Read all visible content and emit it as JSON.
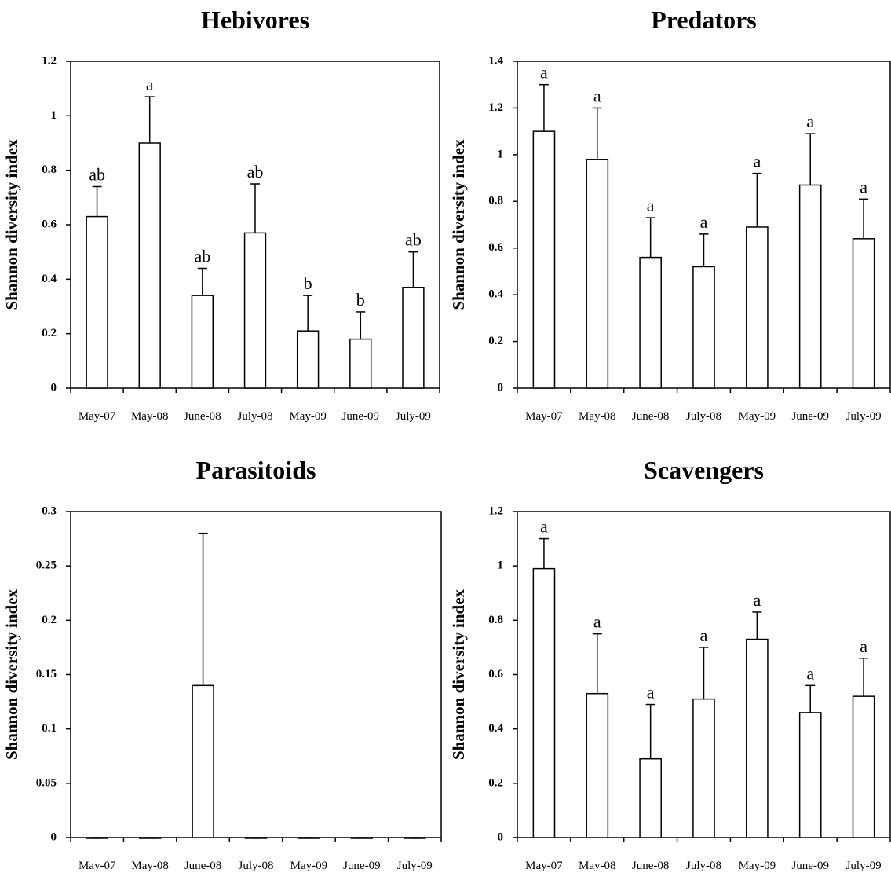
{
  "chart_data": [
    {
      "type": "bar",
      "title": "Hebivores",
      "y_label": "Shannon diversity index",
      "categories": [
        "May-07",
        "May-08",
        "June-08",
        "July-08",
        "May-09",
        "June-09",
        "July-09"
      ],
      "values": [
        0.63,
        0.9,
        0.34,
        0.57,
        0.21,
        0.18,
        0.37
      ],
      "errors": [
        0.11,
        0.17,
        0.1,
        0.18,
        0.13,
        0.1,
        0.13
      ],
      "annotations": [
        "ab",
        "a",
        "ab",
        "ab",
        "b",
        "b",
        "ab"
      ],
      "ylim": [
        0,
        1.2
      ],
      "yticks": [
        0,
        0.2,
        0.4,
        0.6,
        0.8,
        1,
        1.2
      ],
      "color": "#ffffff"
    },
    {
      "type": "bar",
      "title": "Predators",
      "y_label": "Shannon diversity index",
      "categories": [
        "May-07",
        "May-08",
        "June-08",
        "July-08",
        "May-09",
        "June-09",
        "July-09"
      ],
      "values": [
        1.1,
        0.98,
        0.56,
        0.52,
        0.69,
        0.87,
        0.64
      ],
      "errors": [
        0.2,
        0.22,
        0.17,
        0.14,
        0.23,
        0.22,
        0.17
      ],
      "annotations": [
        "a",
        "a",
        "a",
        "a",
        "a",
        "a",
        "a"
      ],
      "ylim": [
        0,
        1.4
      ],
      "yticks": [
        0,
        0.2,
        0.4,
        0.6,
        0.8,
        1,
        1.2,
        1.4
      ],
      "color": "#ffffff"
    },
    {
      "type": "bar",
      "title": "Parasitoids",
      "y_label": "Shannon diversity index",
      "categories": [
        "May-07",
        "May-08",
        "June-08",
        "July-08",
        "May-09",
        "June-09",
        "July-09"
      ],
      "values": [
        0,
        0,
        0.14,
        0,
        0,
        0,
        0
      ],
      "errors": [
        0,
        0,
        0.14,
        0,
        0,
        0,
        0
      ],
      "ylim": [
        0,
        0.3
      ],
      "yticks": [
        0,
        0.05,
        0.1,
        0.15,
        0.2,
        0.25,
        0.3
      ],
      "color": "#ffffff"
    },
    {
      "type": "bar",
      "title": "Scavengers",
      "y_label": "Shannon diversity index",
      "categories": [
        "May-07",
        "May-08",
        "June-08",
        "July-08",
        "May-09",
        "June-09",
        "July-09"
      ],
      "values": [
        0.99,
        0.53,
        0.29,
        0.51,
        0.73,
        0.46,
        0.52
      ],
      "errors": [
        0.11,
        0.22,
        0.2,
        0.19,
        0.1,
        0.1,
        0.14
      ],
      "annotations": [
        "a",
        "a",
        "a",
        "a",
        "a",
        "a",
        "a"
      ],
      "ylim": [
        0,
        1.2
      ],
      "yticks": [
        0,
        0.2,
        0.4,
        0.6,
        0.8,
        1,
        1.2
      ],
      "color": "#ffffff"
    }
  ]
}
